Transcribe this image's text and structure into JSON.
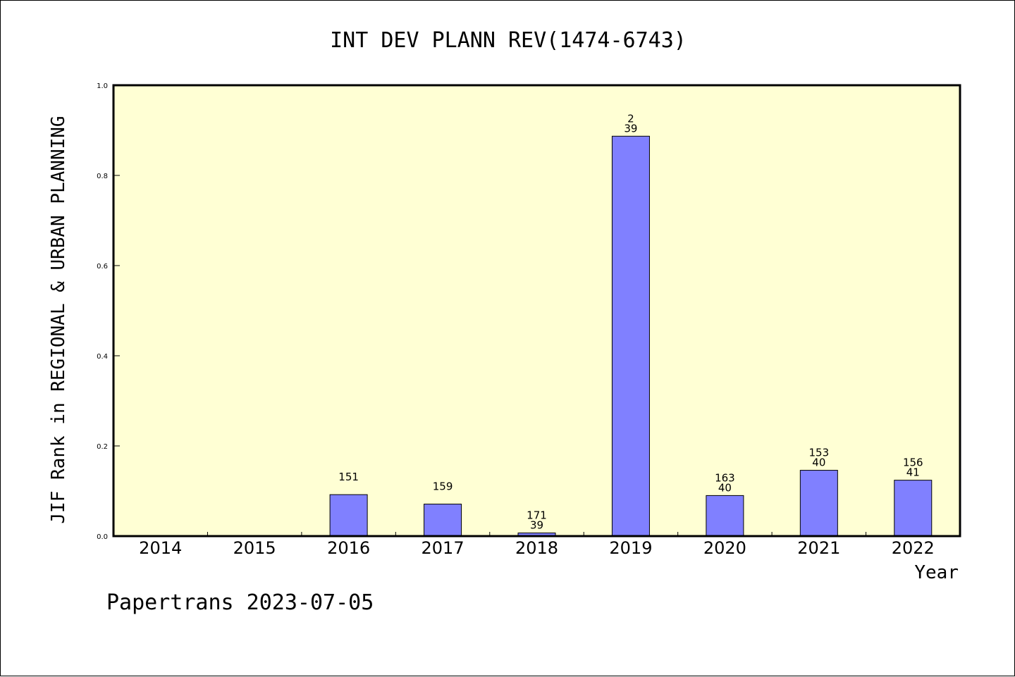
{
  "chart_data": {
    "type": "bar",
    "title": "INT DEV PLANN REV(1474-6743)",
    "xlabel": "Year",
    "ylabel": "JIF Rank in REGIONAL & URBAN PLANNING",
    "ylim": [
      0,
      1.0
    ],
    "yticks": [
      "0.0",
      "0.2",
      "0.4",
      "0.6",
      "0.8",
      "1.0"
    ],
    "categories": [
      "2014",
      "2015",
      "2016",
      "2017",
      "2018",
      "2019",
      "2020",
      "2021",
      "2022"
    ],
    "values": [
      null,
      null,
      0.092,
      0.071,
      0.007,
      0.887,
      0.09,
      0.146,
      0.124
    ],
    "labels": [
      [],
      [],
      [
        "151"
      ],
      [
        "159"
      ],
      [
        "171",
        "39"
      ],
      [
        "2",
        "39"
      ],
      [
        "163",
        "40"
      ],
      [
        "153",
        "40"
      ],
      [
        "156",
        "41"
      ]
    ],
    "bar_color": "#8080ff",
    "plot_background": "#ffffd4",
    "grid": false
  },
  "footer": {
    "text": "Papertrans 2023-07-05"
  }
}
